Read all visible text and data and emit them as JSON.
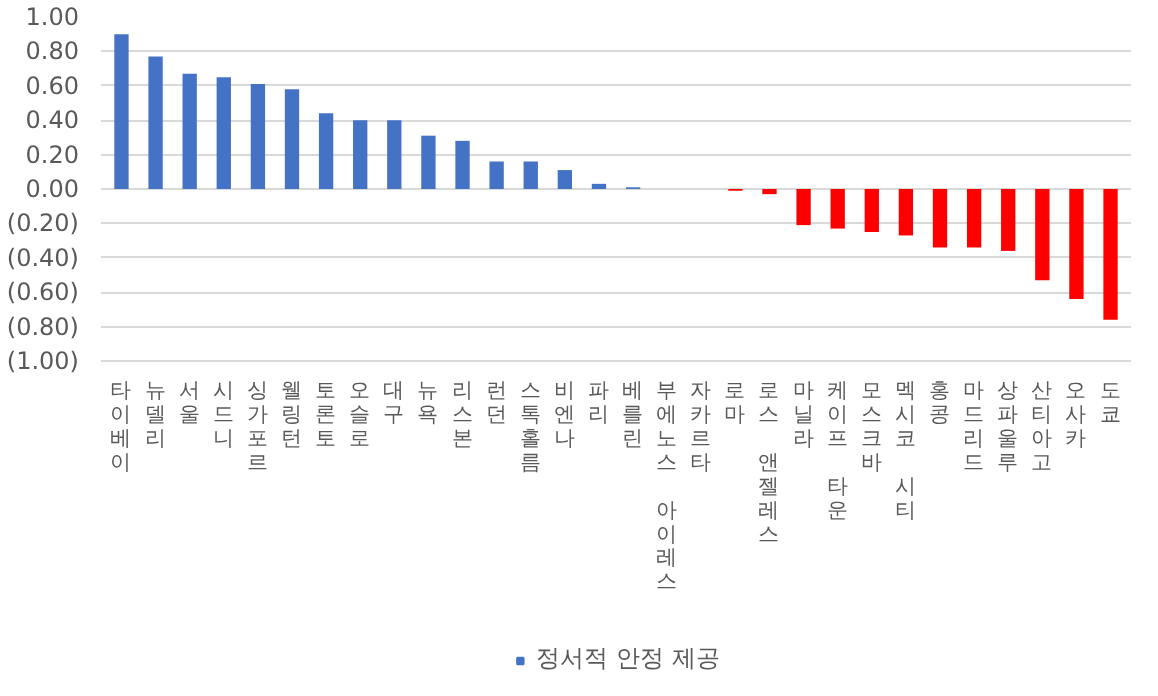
{
  "chart_data": {
    "type": "bar",
    "categories": [
      "타이베이",
      "뉴델리",
      "서울",
      "시드니",
      "싱가포르",
      "웰링턴",
      "토론토",
      "오슬로",
      "대구",
      "뉴욕",
      "리스본",
      "런던",
      "스톡홀름",
      "비엔나",
      "파리",
      "베를린",
      "부에노스 아이레스",
      "자카르타",
      "로마",
      "로스 앤젤레스",
      "마닐라",
      "케이프 타운",
      "모스크바",
      "멕시코 시티",
      "홍콩",
      "마드리드",
      "상파울루",
      "산티아고",
      "오사카",
      "도쿄"
    ],
    "series": [
      {
        "name": "정서적 안정 제공",
        "color": "#4472c4",
        "colors": [
          "#4472c4",
          "#4472c4",
          "#4472c4",
          "#4472c4",
          "#4472c4",
          "#4472c4",
          "#4472c4",
          "#4472c4",
          "#4472c4",
          "#4472c4",
          "#4472c4",
          "#4472c4",
          "#4472c4",
          "#4472c4",
          "#4472c4",
          "#4472c4",
          "#4472c4",
          "#4472c4",
          "#ff0000",
          "#ff0000",
          "#ff0000",
          "#ff0000",
          "#ff0000",
          "#ff0000",
          "#ff0000",
          "#ff0000",
          "#ff0000",
          "#ff0000",
          "#ff0000",
          "#ff0000"
        ],
        "values": [
          0.9,
          0.77,
          0.67,
          0.65,
          0.61,
          0.58,
          0.44,
          0.4,
          0.4,
          0.31,
          0.28,
          0.16,
          0.16,
          0.11,
          0.03,
          0.01,
          0,
          0,
          -0.01,
          -0.03,
          -0.21,
          -0.23,
          -0.25,
          -0.27,
          -0.34,
          -0.34,
          -0.36,
          -0.53,
          -0.64,
          -0.76
        ]
      }
    ],
    "ylim": [
      -1.0,
      1.0
    ],
    "yticks": [
      {
        "value": -1.0,
        "label": "(1.00)"
      },
      {
        "value": -0.8,
        "label": "(0.80)"
      },
      {
        "value": -0.6,
        "label": "(0.60)"
      },
      {
        "value": -0.4,
        "label": "(0.40)"
      },
      {
        "value": -0.2,
        "label": "(0.20)"
      },
      {
        "value": 0,
        "label": "0.00"
      },
      {
        "value": 0.2,
        "label": "0.20"
      },
      {
        "value": 0.4,
        "label": "0.40"
      },
      {
        "value": 0.6,
        "label": "0.60"
      },
      {
        "value": 0.8,
        "label": "0.80"
      },
      {
        "value": 1.0,
        "label": "1.00"
      }
    ],
    "grid": "y",
    "legend": "bottom"
  }
}
